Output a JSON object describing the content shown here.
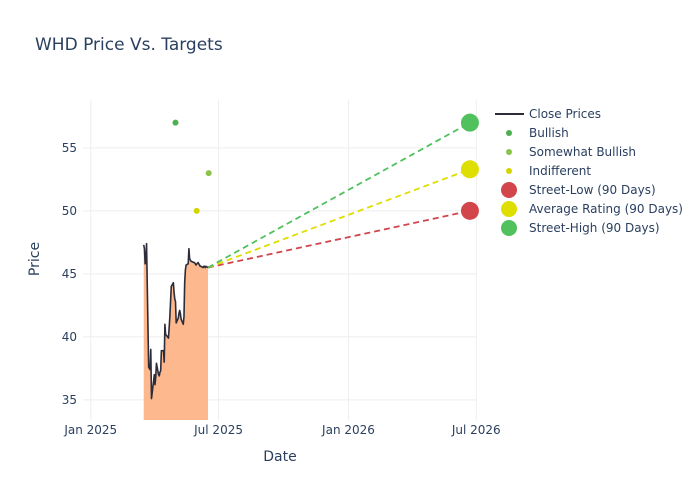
{
  "chart_data": {
    "type": "line",
    "title": "WHD Price Vs. Targets",
    "xlabel": "Date",
    "ylabel": "Price",
    "x_tick_labels": [
      {
        "date": "2025-01-01",
        "label": "Jan 2025"
      },
      {
        "date": "2025-07-01",
        "label": "Jul 2025"
      },
      {
        "date": "2026-01-01",
        "label": "Jan 2026"
      },
      {
        "date": "2026-07-01",
        "label": "Jul 2026"
      }
    ],
    "xlim": [
      "2024-12-21",
      "2026-07-02"
    ],
    "ylim": [
      33.4,
      58.8
    ],
    "y_ticks": [
      35,
      40,
      45,
      50,
      55
    ],
    "grid": true,
    "legend_position": "top-right",
    "colors": {
      "close": "#2c2c3a",
      "fill": "#fdb88e",
      "bullish": "#4caf50",
      "somewhat_bullish": "#8bc34a",
      "indifferent": "#d4d400",
      "street_low": "#d1454b",
      "average": "#dede00",
      "street_high": "#50c15d"
    },
    "series": [
      {
        "name": "Close Prices",
        "kind": "line",
        "x": [
          "2025-03-17",
          "2025-03-18",
          "2025-03-19",
          "2025-03-20",
          "2025-03-21",
          "2025-03-24",
          "2025-03-25",
          "2025-03-26",
          "2025-03-27",
          "2025-03-28",
          "2025-03-31",
          "2025-04-01",
          "2025-04-02",
          "2025-04-03",
          "2025-04-04",
          "2025-04-07",
          "2025-04-08",
          "2025-04-09",
          "2025-04-10",
          "2025-04-11",
          "2025-04-14",
          "2025-04-15",
          "2025-04-16",
          "2025-04-17",
          "2025-04-21",
          "2025-04-22",
          "2025-04-23",
          "2025-04-24",
          "2025-04-25",
          "2025-04-28",
          "2025-04-29",
          "2025-04-30",
          "2025-05-01",
          "2025-05-02",
          "2025-05-05",
          "2025-05-06",
          "2025-05-07",
          "2025-05-08",
          "2025-05-09",
          "2025-05-12",
          "2025-05-13",
          "2025-05-14",
          "2025-05-15",
          "2025-05-16",
          "2025-05-19",
          "2025-05-20",
          "2025-05-21",
          "2025-05-22",
          "2025-05-23",
          "2025-05-27",
          "2025-05-28",
          "2025-05-29",
          "2025-05-30",
          "2025-06-02",
          "2025-06-03",
          "2025-06-04",
          "2025-06-05",
          "2025-06-06",
          "2025-06-09",
          "2025-06-10",
          "2025-06-11",
          "2025-06-12",
          "2025-06-13",
          "2025-06-16"
        ],
        "y": [
          47.3,
          47.0,
          45.8,
          45.9,
          47.4,
          37.6,
          37.5,
          37.4,
          39.0,
          35.1,
          36.5,
          37.0,
          36.2,
          36.8,
          37.9,
          37.0,
          36.9,
          37.2,
          37.3,
          38.9,
          38.9,
          38.0,
          41.0,
          40.2,
          39.9,
          40.7,
          41.6,
          42.8,
          44.0,
          44.3,
          43.5,
          43.0,
          42.8,
          41.1,
          41.5,
          41.9,
          42.1,
          41.8,
          41.4,
          41.0,
          41.6,
          44.3,
          45.3,
          45.7,
          45.8,
          47.0,
          46.2,
          46.1,
          46.0,
          45.9,
          45.9,
          45.8,
          45.7,
          45.9,
          45.8,
          45.7,
          45.6,
          45.6,
          45.5,
          45.6,
          45.6,
          45.5,
          45.6,
          45.5
        ]
      },
      {
        "name": "Bullish",
        "kind": "scatter",
        "x": [
          "2025-05-01"
        ],
        "y": [
          57.0
        ]
      },
      {
        "name": "Somewhat Bullish",
        "kind": "scatter",
        "x": [
          "2025-06-17"
        ],
        "y": [
          53.0
        ]
      },
      {
        "name": "Indifferent",
        "kind": "scatter",
        "x": [
          "2025-05-31"
        ],
        "y": [
          50.0
        ]
      },
      {
        "name": "Street-Low (90 Days)",
        "kind": "target",
        "x": [
          "2025-06-16",
          "2026-06-22"
        ],
        "y": [
          45.5,
          50.0
        ]
      },
      {
        "name": "Average Rating (90 Days)",
        "kind": "target",
        "x": [
          "2025-06-16",
          "2026-06-22"
        ],
        "y": [
          45.5,
          53.3
        ]
      },
      {
        "name": "Street-High (90 Days)",
        "kind": "target",
        "x": [
          "2025-06-16",
          "2026-06-22"
        ],
        "y": [
          45.5,
          57.0
        ]
      }
    ]
  }
}
